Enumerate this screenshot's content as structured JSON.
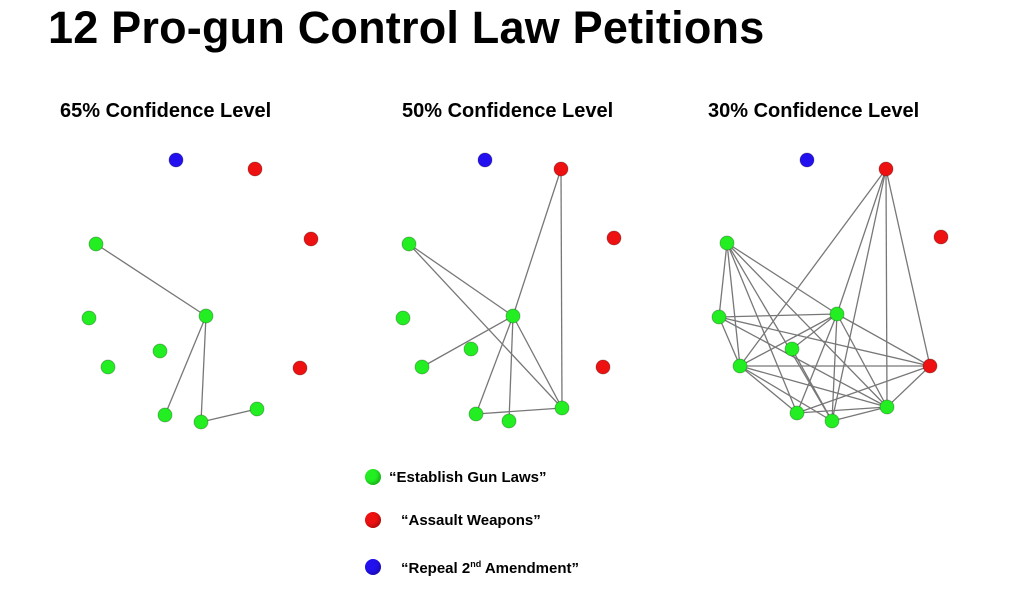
{
  "title": "12 Pro-gun Control Law Petitions",
  "panels": [
    {
      "label": "65% Confidence Level",
      "nodes": [
        {
          "id": "blue",
          "category": "repeal"
        },
        {
          "id": "red1",
          "category": "assault"
        },
        {
          "id": "red2",
          "category": "assault"
        },
        {
          "id": "red3",
          "category": "assault"
        },
        {
          "id": "g1",
          "category": "establish"
        },
        {
          "id": "g2",
          "category": "establish"
        },
        {
          "id": "g3",
          "category": "establish"
        },
        {
          "id": "g4",
          "category": "establish"
        },
        {
          "id": "g5",
          "category": "establish"
        },
        {
          "id": "g6",
          "category": "establish"
        },
        {
          "id": "g7",
          "category": "establish"
        },
        {
          "id": "g8",
          "category": "establish"
        }
      ],
      "edges": [
        [
          "g1",
          "g3"
        ],
        [
          "g3",
          "g6"
        ],
        [
          "g3",
          "g8"
        ],
        [
          "g8",
          "g7"
        ]
      ]
    },
    {
      "label": "50% Confidence Level",
      "nodes": [
        {
          "id": "blue",
          "category": "repeal"
        },
        {
          "id": "red1",
          "category": "assault"
        },
        {
          "id": "red2",
          "category": "assault"
        },
        {
          "id": "red3",
          "category": "assault"
        },
        {
          "id": "g1",
          "category": "establish"
        },
        {
          "id": "g2",
          "category": "establish"
        },
        {
          "id": "g3",
          "category": "establish"
        },
        {
          "id": "g4",
          "category": "establish"
        },
        {
          "id": "g5",
          "category": "establish"
        },
        {
          "id": "g6",
          "category": "establish"
        },
        {
          "id": "g7",
          "category": "establish"
        },
        {
          "id": "g8",
          "category": "establish"
        }
      ],
      "edges": [
        [
          "g1",
          "g3"
        ],
        [
          "g1",
          "g7"
        ],
        [
          "g3",
          "red1"
        ],
        [
          "red1",
          "g7"
        ],
        [
          "g3",
          "g6"
        ],
        [
          "g6",
          "g7"
        ],
        [
          "g3",
          "g5"
        ],
        [
          "g3",
          "g8"
        ],
        [
          "g3",
          "g7"
        ]
      ]
    },
    {
      "label": "30% Confidence Level",
      "nodes": [
        {
          "id": "blue",
          "category": "repeal"
        },
        {
          "id": "red1",
          "category": "assault"
        },
        {
          "id": "red2",
          "category": "assault"
        },
        {
          "id": "red3",
          "category": "assault"
        },
        {
          "id": "g1",
          "category": "establish"
        },
        {
          "id": "g2",
          "category": "establish"
        },
        {
          "id": "g3",
          "category": "establish"
        },
        {
          "id": "g4",
          "category": "establish"
        },
        {
          "id": "g5",
          "category": "establish"
        },
        {
          "id": "g6",
          "category": "establish"
        },
        {
          "id": "g7",
          "category": "establish"
        },
        {
          "id": "g8",
          "category": "establish"
        }
      ],
      "edges": [
        [
          "g1",
          "g2"
        ],
        [
          "g1",
          "g3"
        ],
        [
          "g1",
          "g6"
        ],
        [
          "g1",
          "g5"
        ],
        [
          "g1",
          "g8"
        ],
        [
          "g1",
          "g7"
        ],
        [
          "g2",
          "g3"
        ],
        [
          "g2",
          "g7"
        ],
        [
          "g2",
          "red3"
        ],
        [
          "g2",
          "g5"
        ],
        [
          "g3",
          "g4"
        ],
        [
          "g3",
          "g6"
        ],
        [
          "g3",
          "g5"
        ],
        [
          "g3",
          "g8"
        ],
        [
          "g3",
          "g7"
        ],
        [
          "g3",
          "red3"
        ],
        [
          "g3",
          "red1"
        ],
        [
          "red1",
          "g5"
        ],
        [
          "red1",
          "g8"
        ],
        [
          "red1",
          "g7"
        ],
        [
          "red1",
          "red3"
        ],
        [
          "g6",
          "g5"
        ],
        [
          "g6",
          "g7"
        ],
        [
          "g6",
          "red3"
        ],
        [
          "g5",
          "g7"
        ],
        [
          "g5",
          "g8"
        ],
        [
          "g5",
          "red3"
        ],
        [
          "g8",
          "g7"
        ],
        [
          "g7",
          "red3"
        ],
        [
          "g4",
          "g8"
        ]
      ]
    }
  ],
  "legend": [
    {
      "category": "establish",
      "label": "“Establish Gun Laws”"
    },
    {
      "category": "assault",
      "label": "“Assault Weapons”"
    },
    {
      "category": "repeal",
      "label_prefix": "“Repeal 2",
      "label_sup": "nd",
      "label_suffix": " Amendment”"
    }
  ],
  "colors": {
    "establish": "#22ee22",
    "assault": "#ee1111",
    "repeal": "#2211ee",
    "edge": "#777777"
  }
}
